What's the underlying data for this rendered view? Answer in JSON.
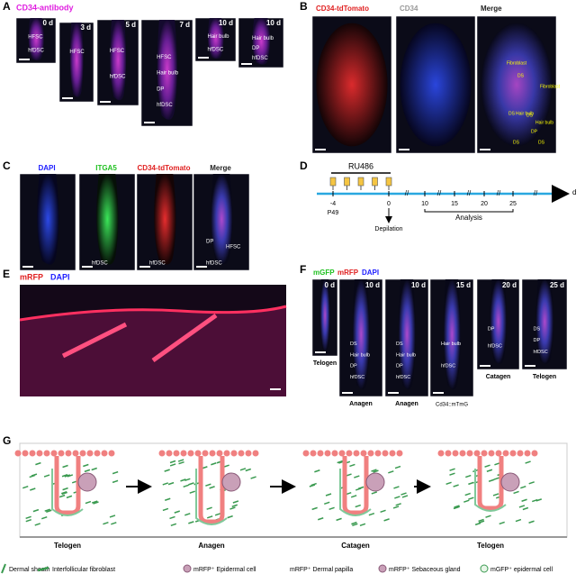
{
  "panel_a": {
    "letter": "A",
    "stain": "CD34-antibody",
    "images": [
      [
        "0 d",
        "HFSC",
        "hfDSC"
      ],
      [
        "3 d",
        "HFSC"
      ],
      [
        "5 d",
        "HFSC",
        "hfDSC"
      ],
      [
        "7 d",
        "HFSC",
        "Hair bulb",
        "DP",
        "hfDSC"
      ],
      [
        "10 d",
        "Hair bulb",
        "hfDSC"
      ],
      [
        "10 d",
        "Hair bulb",
        "DP",
        "hfDSC"
      ]
    ]
  },
  "panel_b": {
    "letter": "B",
    "channels": [
      "CD34-tdTomato",
      "CD34",
      "Merge"
    ],
    "annotations": [
      "Fibroblast",
      "DS",
      "Fibroblast",
      "DS",
      "Hair bulb",
      "DS",
      "Hair bulb",
      "DP",
      "DS",
      "DS"
    ]
  },
  "panel_c": {
    "letter": "C",
    "channels": [
      "DAPI",
      "ITGA5",
      "CD34-tdTomato",
      "Merge"
    ],
    "annotations": [
      {
        "image": 1,
        "text": "hfDSC"
      },
      {
        "image": 2,
        "text": "hfDSC"
      },
      {
        "image": 3,
        "text": "DP"
      },
      {
        "image": 3,
        "text": "HFSC"
      },
      {
        "image": 3,
        "text": "hfDSC"
      }
    ]
  },
  "panel_d": {
    "letter": "D",
    "drug": "RU486",
    "days": [
      -4,
      0,
      10,
      15,
      20,
      25
    ],
    "unit": "d",
    "age": "P49",
    "event": "Depilation",
    "phase": "Analysis"
  },
  "panel_e": {
    "letter": "E",
    "channels": [
      "mRFP",
      "DAPI"
    ]
  },
  "panel_f": {
    "letter": "F",
    "channels": [
      "mGFP",
      "mRFP",
      "DAPI"
    ],
    "mouse_line": "Cd34::mTmG",
    "images": [
      {
        "day": "0 d",
        "stage": "Telogen"
      },
      {
        "day": "10 d",
        "stage": "Anagen",
        "labels": [
          "DS",
          "Hair bulb",
          "DP",
          "hfDSC"
        ]
      },
      {
        "day": "10 d",
        "stage": "Anagen",
        "labels": [
          "DS",
          "Hair bulb",
          "DP",
          "hfDSC"
        ]
      },
      {
        "day": "15 d",
        "labels": [
          "Hair bulb",
          "hfDSC"
        ]
      },
      {
        "day": "20 d",
        "stage": "Catagen",
        "labels": [
          "DP",
          "hfDSC"
        ]
      },
      {
        "day": "25 d",
        "stage": "Telogen",
        "labels": [
          "DS",
          "DP",
          "hfDSC"
        ]
      }
    ]
  },
  "panel_g": {
    "letter": "G",
    "stages": [
      "Telogen",
      "Anagen",
      "Catagen",
      "Telogen"
    ],
    "legend": [
      "Dermal sheath",
      "Interfollicular fibroblast",
      "mRFP⁺ Epidermal cell",
      "mRFP⁺ Dermal papilla",
      "mRFP⁺ Sebaceous gland",
      "mGFP⁺ epidermal cell"
    ]
  }
}
